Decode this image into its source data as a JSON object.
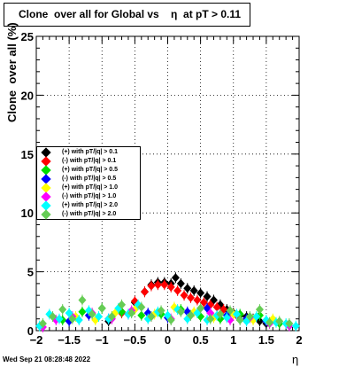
{
  "title": "Clone  over all for Global vs    η  at pT > 0.11",
  "datestamp": "Wed Sep 21 08:28:48 2022",
  "chart_data": {
    "type": "scatter",
    "title": "Clone  over all for Global vs    η  at pT > 0.11",
    "xlabel": "η",
    "ylabel": "Clone  over all (%)",
    "xlim": [
      -2,
      2
    ],
    "ylim": [
      0,
      25
    ],
    "x_ticks": [
      "−2",
      "−1.5",
      "−1",
      "−0.5",
      "0",
      "0.5",
      "1",
      "1.5",
      "2"
    ],
    "y_ticks": [
      "0",
      "5",
      "10",
      "15",
      "20",
      "25"
    ],
    "grid": true,
    "legend_position": "middle-left",
    "series": [
      {
        "name": "(+) with pT/|q| > 0.1",
        "color": "#000000",
        "x": [
          -0.9,
          -0.7,
          -0.5,
          -0.35,
          -0.25,
          -0.15,
          -0.05,
          0.05,
          0.12,
          0.2,
          0.3,
          0.4,
          0.5,
          0.6,
          0.7,
          0.8,
          0.9,
          1.0,
          1.1,
          1.2,
          1.3,
          1.4,
          1.5
        ],
        "y": [
          0.8,
          1.6,
          2.4,
          3.3,
          3.9,
          4.1,
          4.1,
          4.0,
          4.5,
          4.0,
          3.6,
          3.4,
          3.2,
          2.9,
          2.6,
          2.2,
          1.8,
          1.5,
          1.3,
          1.2,
          1.0,
          0.8,
          0.6
        ]
      },
      {
        "name": "(-) with pT/|q| > 0.1",
        "color": "#ff0000",
        "x": [
          -0.7,
          -0.5,
          -0.35,
          -0.25,
          -0.15,
          -0.05,
          0.05,
          0.15,
          0.25,
          0.35,
          0.45,
          0.55,
          0.65,
          0.75,
          0.85,
          0.95,
          1.05
        ],
        "y": [
          1.5,
          2.5,
          3.3,
          3.8,
          3.9,
          3.9,
          3.7,
          3.4,
          3.0,
          2.8,
          2.6,
          2.4,
          2.2,
          2.0,
          1.8,
          1.5,
          1.3
        ]
      },
      {
        "name": "(+) with pT/|q| > 0.5",
        "color": "#00dd00",
        "x": [
          -1.6,
          -1.3,
          -1.0,
          -0.7,
          -0.4,
          -0.1,
          0.2,
          0.5,
          0.8,
          1.1,
          1.4,
          1.7
        ],
        "y": [
          0.9,
          1.6,
          1.9,
          1.6,
          1.3,
          1.4,
          1.8,
          1.2,
          1.0,
          1.4,
          1.3,
          0.6
        ]
      },
      {
        "name": "(-) with pT/|q| > 0.5",
        "color": "#0000ff",
        "x": [
          -1.5,
          -1.2,
          -0.9,
          -0.6,
          -0.3,
          0.0,
          0.3,
          0.6,
          0.9,
          1.2,
          1.5
        ],
        "y": [
          0.8,
          1.3,
          1.0,
          1.4,
          1.5,
          1.1,
          1.6,
          1.9,
          1.3,
          1.0,
          0.8
        ]
      },
      {
        "name": "(+) with pT/|q| > 1.0",
        "color": "#ffff00",
        "x": [
          -1.4,
          -1.1,
          -0.8,
          -0.5,
          -0.2,
          0.1,
          0.4,
          0.7,
          1.0,
          1.3,
          1.6
        ],
        "y": [
          1.2,
          0.9,
          1.5,
          1.8,
          1.4,
          2.0,
          1.6,
          1.1,
          1.4,
          0.9,
          1.0
        ]
      },
      {
        "name": "(-) with pT/|q| > 1.0",
        "color": "#ff00ff",
        "x": [
          -1.9,
          -1.7,
          -1.45,
          -1.15,
          -0.85,
          -0.55,
          -0.25,
          0.05,
          0.35,
          0.65,
          0.95,
          1.25,
          1.55,
          1.85
        ],
        "y": [
          0.3,
          0.9,
          1.2,
          1.5,
          1.0,
          1.7,
          1.2,
          1.0,
          1.3,
          1.5,
          0.9,
          1.1,
          0.6,
          0.4
        ]
      },
      {
        "name": "(+) with pT/|q| > 2.0",
        "color": "#00ffff",
        "x": [
          -1.95,
          -1.8,
          -1.65,
          -1.5,
          -1.35,
          -1.2,
          -1.05,
          -0.9,
          -0.75,
          -0.6,
          -0.45,
          -0.3,
          -0.15,
          0.0,
          0.15,
          0.3,
          0.45,
          0.6,
          0.75,
          0.9,
          1.05,
          1.2,
          1.35,
          1.5,
          1.65,
          1.8,
          1.95
        ],
        "y": [
          0.4,
          1.4,
          1.0,
          1.5,
          0.9,
          1.7,
          1.2,
          1.0,
          1.9,
          1.4,
          2.2,
          1.0,
          1.6,
          1.3,
          1.8,
          1.0,
          1.5,
          0.9,
          1.3,
          1.1,
          1.4,
          0.8,
          1.2,
          0.9,
          0.7,
          0.6,
          0.4
        ]
      },
      {
        "name": "(-) with pT/|q| > 2.0",
        "color": "#66cc55",
        "x": [
          -1.9,
          -1.75,
          -1.6,
          -1.45,
          -1.3,
          -1.15,
          -1.0,
          -0.85,
          -0.7,
          -0.55,
          -0.4,
          -0.25,
          -0.1,
          0.05,
          0.2,
          0.35,
          0.5,
          0.65,
          0.8,
          0.95,
          1.1,
          1.25,
          1.4,
          1.55,
          1.7,
          1.85
        ],
        "y": [
          0.6,
          1.2,
          1.8,
          1.0,
          2.6,
          1.4,
          1.9,
          1.2,
          2.2,
          1.5,
          2.0,
          1.2,
          1.7,
          0.9,
          1.6,
          1.3,
          1.9,
          1.0,
          1.4,
          1.7,
          0.9,
          1.2,
          1.8,
          0.7,
          0.8,
          0.6
        ]
      }
    ]
  }
}
